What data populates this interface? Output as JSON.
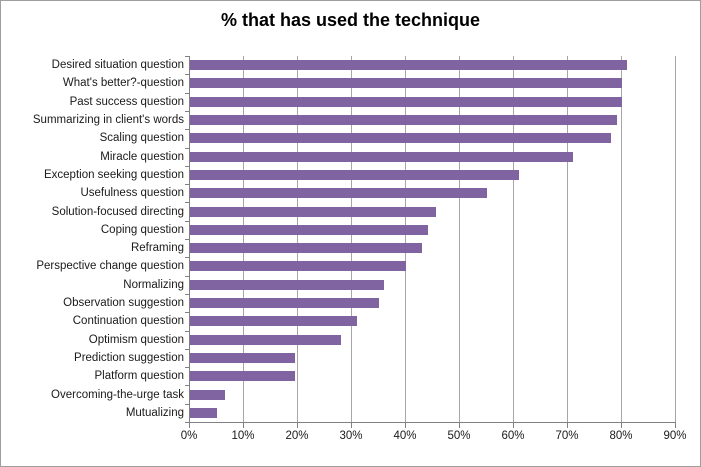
{
  "chart_data": {
    "type": "bar",
    "orientation": "horizontal",
    "title": "% that has used the technique",
    "categories": [
      "Desired situation question",
      "What's better?-question",
      "Past success question",
      "Summarizing in client's words",
      "Scaling question",
      "Miracle question",
      "Exception seeking question",
      "Usefulness question",
      "Solution-focused directing",
      "Coping question",
      "Reframing",
      "Perspective change question",
      "Normalizing",
      "Observation suggestion",
      "Continuation question",
      "Optimism question",
      "Prediction suggestion",
      "Platform question",
      "Overcoming-the-urge task",
      "Mutualizing"
    ],
    "values": [
      81,
      80,
      80,
      79,
      78,
      71,
      61,
      55,
      45.5,
      44,
      43,
      40,
      36,
      35,
      31,
      28,
      19.5,
      19.5,
      6.5,
      5
    ],
    "x_tick_labels": [
      "0%",
      "10%",
      "20%",
      "30%",
      "40%",
      "50%",
      "60%",
      "70%",
      "80%",
      "90%"
    ],
    "x_tick_values": [
      0,
      10,
      20,
      30,
      40,
      50,
      60,
      70,
      80,
      90
    ],
    "xlim": [
      0,
      90
    ],
    "xlabel": "",
    "ylabel": "",
    "grid": true,
    "legend": false
  },
  "colors": {
    "bar": "#8064A2",
    "gridline": "#a6a6a6",
    "axis": "#808080",
    "border": "#9e9e9e",
    "title_text": "#000000",
    "label_text": "#1a1a1a",
    "background": "#ffffff"
  }
}
